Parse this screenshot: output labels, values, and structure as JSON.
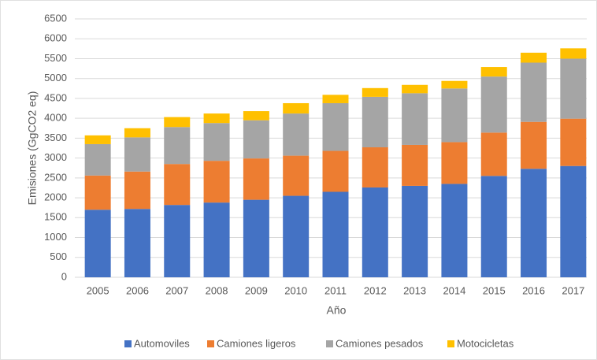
{
  "chart_data": {
    "type": "stacked_bar",
    "ylabel": "Emisiones (GgCO2 eq)",
    "xlabel": "Año",
    "categories": [
      "2005",
      "2006",
      "2007",
      "2008",
      "2009",
      "2010",
      "2011",
      "2012",
      "2013",
      "2014",
      "2015",
      "2016",
      "2017"
    ],
    "series": [
      {
        "name": "Automoviles",
        "color": "#4472c4",
        "values": [
          1700,
          1720,
          1820,
          1880,
          1950,
          2050,
          2150,
          2260,
          2300,
          2350,
          2550,
          2730,
          2800
        ]
      },
      {
        "name": "Camiones ligeros",
        "color": "#ed7d31",
        "values": [
          860,
          940,
          1030,
          1050,
          1040,
          1010,
          1030,
          1010,
          1030,
          1050,
          1090,
          1180,
          1190
        ]
      },
      {
        "name": "Camiones pesados",
        "color": "#a5a5a5",
        "values": [
          790,
          860,
          930,
          950,
          960,
          1060,
          1200,
          1270,
          1300,
          1350,
          1410,
          1490,
          1510
        ]
      },
      {
        "name": "Motocicletas",
        "color": "#ffc000",
        "values": [
          220,
          230,
          250,
          240,
          230,
          260,
          210,
          220,
          210,
          190,
          240,
          250,
          260
        ]
      }
    ],
    "ylim": [
      0,
      6500
    ],
    "yticks": [
      0,
      500,
      1000,
      1500,
      2000,
      2500,
      3000,
      3500,
      4000,
      4500,
      5000,
      5500,
      6000,
      6500
    ],
    "grid": true,
    "legend": "bottom"
  }
}
